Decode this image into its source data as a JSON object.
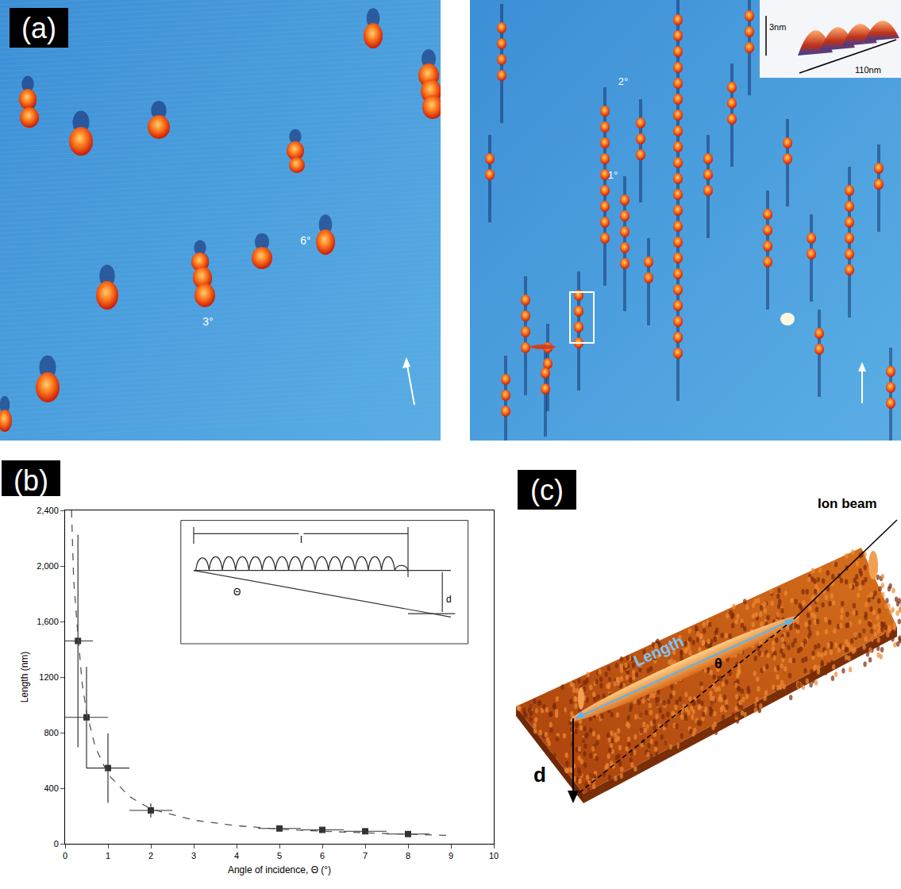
{
  "panels": {
    "a": {
      "label": "(a)",
      "left_image": {
        "annotations": [
          "6°",
          "3°"
        ]
      },
      "right_image": {
        "annotations": [
          "2°",
          "1°"
        ],
        "inset": {
          "height": "3nm",
          "width": "110nm"
        }
      }
    },
    "b": {
      "label": "(b)",
      "inset": {
        "length": "l",
        "angle": "Θ",
        "depth": "d"
      }
    },
    "c": {
      "label": "(c)",
      "labels": {
        "length": "Length",
        "angle": "θ",
        "depth": "d",
        "beam": "Ion beam"
      }
    }
  },
  "chart_data": {
    "type": "scatter",
    "x_label": "Angle of incidence, Θ (°)",
    "y_label": "Length (nm)",
    "xlim": [
      0,
      10
    ],
    "xticks": [
      0,
      1,
      2,
      3,
      4,
      5,
      6,
      7,
      8,
      9,
      10
    ],
    "ylim": [
      0,
      2400
    ],
    "yticks": [
      0,
      400,
      800,
      1200,
      {
        "value": 1600,
        "label": "1,600"
      },
      {
        "value": 2000,
        "label": "2,000"
      },
      {
        "value": 2400,
        "label": "2,400"
      }
    ],
    "grid": false,
    "series": [
      {
        "type": "scatter",
        "marker": "square",
        "color": "#333333",
        "x": [
          0.3,
          0.5,
          1,
          2,
          5,
          6,
          7,
          8
        ],
        "values": [
          1460,
          910,
          545,
          240,
          110,
          100,
          90,
          70
        ],
        "x_error": [
          0.35,
          0.5,
          0.5,
          0.5,
          0.5,
          0.5,
          0.5,
          0.5
        ],
        "y_error": [
          765,
          365,
          250,
          50,
          15,
          15,
          10,
          10
        ]
      },
      {
        "type": "line",
        "line_style": "dashed",
        "color": "#555555",
        "x": [
          0.15,
          0.2,
          0.3,
          0.4,
          0.5,
          0.7,
          1,
          1.5,
          2,
          3,
          4,
          5,
          6,
          7,
          8,
          9
        ],
        "values": [
          2400,
          1900,
          1500,
          1150,
          950,
          700,
          500,
          340,
          250,
          170,
          130,
          105,
          90,
          78,
          68,
          60
        ]
      }
    ]
  }
}
